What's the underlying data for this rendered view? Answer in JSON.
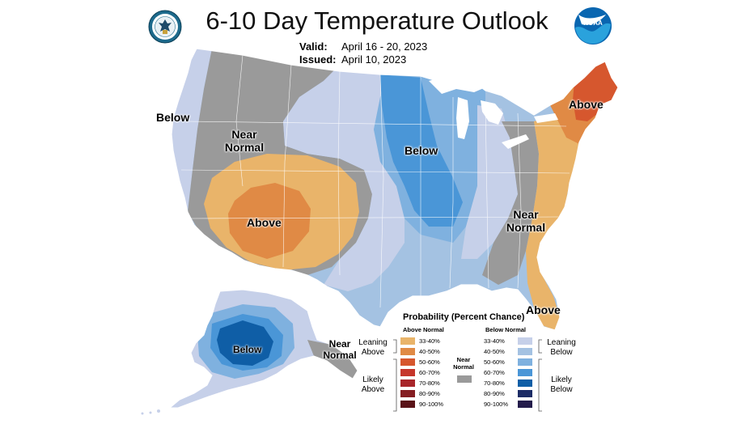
{
  "header": {
    "title": "6-10 Day Temperature Outlook",
    "valid_label": "Valid:",
    "valid_value": "April 16 - 20, 2023",
    "issued_label": "Issued:",
    "issued_value": "April 10, 2023",
    "left_logo": "department-of-commerce-seal",
    "right_logo": "NOAA"
  },
  "map_labels": {
    "west_coast": "Below",
    "west_interior": "Near Normal",
    "southwest": "Above",
    "central": "Below",
    "northeast": "Above",
    "east": "Near Normal",
    "florida": "Above",
    "alaska": "Below",
    "alaska_southeast": "Near Normal"
  },
  "legend": {
    "title": "Probability (Percent Chance)",
    "above_header": "Above Normal",
    "below_header": "Below Normal",
    "near_normal": "Near Normal",
    "leaning_above": "Leaning Above",
    "likely_above": "Likely Above",
    "leaning_below": "Leaning Below",
    "likely_below": "Likely Below",
    "above_bins": [
      {
        "range": "33-40%",
        "color": "#e9b46a"
      },
      {
        "range": "40-50%",
        "color": "#e08a45"
      },
      {
        "range": "50-60%",
        "color": "#d6572e"
      },
      {
        "range": "60-70%",
        "color": "#c5362b"
      },
      {
        "range": "70-80%",
        "color": "#a8262a"
      },
      {
        "range": "80-90%",
        "color": "#851e22"
      },
      {
        "range": "90-100%",
        "color": "#5a1318"
      }
    ],
    "below_bins": [
      {
        "range": "33-40%",
        "color": "#c6d0e9"
      },
      {
        "range": "40-50%",
        "color": "#a4c2e2"
      },
      {
        "range": "50-60%",
        "color": "#7fb1df"
      },
      {
        "range": "60-70%",
        "color": "#4a96d7"
      },
      {
        "range": "70-80%",
        "color": "#0f5ea6"
      },
      {
        "range": "80-90%",
        "color": "#1c2c66"
      },
      {
        "range": "90-100%",
        "color": "#231b4b"
      }
    ],
    "near_normal_color": "#9a9a9a"
  }
}
